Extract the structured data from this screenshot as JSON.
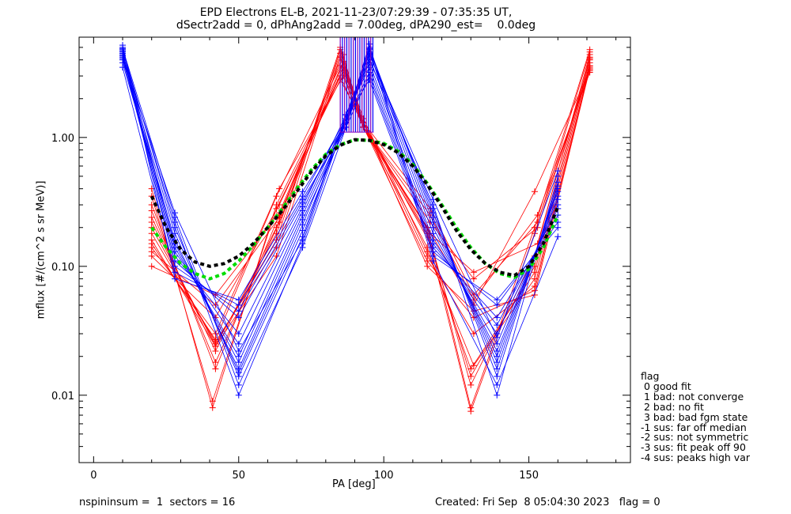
{
  "title_line1": "EPD Electrons EL-B, 2021-11-23/07:29:39 - 07:35:35 UT,",
  "title_line2": "dSectr2add = 0, dPhAng2add = 7.00deg, dPA290_est=    0.0deg",
  "footer": {
    "left": "nspininsum =  1  sectors = 16",
    "right": "Created: Fri Sep  8 05:04:30 2023   flag = 0"
  },
  "legend": {
    "title": "flag",
    "items": [
      " 0 good fit",
      " 1 bad: not converge",
      " 2 bad: no fit",
      " 3 bad: bad fgm state",
      "-1 sus: far off median",
      "-2 sus: not symmetric",
      "-3 sus: fit peak off 90",
      "-4 sus: peaks high var"
    ]
  },
  "colors": {
    "red": "#ff0000",
    "blue": "#0000ff",
    "purple": "#8000c0",
    "green": "#00dd00",
    "black": "#000000"
  },
  "chart_data": {
    "type": "line",
    "xlabel": "PA [deg]",
    "ylabel": "mflux [#/(cm^2 s sr MeV)]",
    "xlim": [
      -5,
      185
    ],
    "ylim": [
      0.003,
      6.0
    ],
    "yscale": "log",
    "xticks": [
      0,
      50,
      100,
      150
    ],
    "yticks": [
      0.01,
      0.1,
      1.0
    ],
    "ytick_labels": [
      "0.01",
      "0.10",
      "1.00"
    ],
    "series": [
      {
        "color": "red",
        "x": [
          20,
          41,
          63,
          85,
          93,
          115,
          130,
          152,
          171
        ],
        "y": [
          0.4,
          0.008,
          0.3,
          3.0,
          1.2,
          0.2,
          0.008,
          0.2,
          4.8
        ]
      },
      {
        "color": "red",
        "x": [
          20,
          41,
          63,
          85,
          93,
          115,
          130,
          152,
          171
        ],
        "y": [
          0.35,
          0.009,
          0.28,
          2.8,
          1.3,
          0.18,
          0.0075,
          0.18,
          4.6
        ]
      },
      {
        "color": "red",
        "x": [
          20,
          42,
          64,
          86,
          93,
          116,
          130,
          152,
          171
        ],
        "y": [
          0.3,
          0.016,
          0.25,
          3.5,
          1.2,
          0.16,
          0.012,
          0.12,
          4.4
        ]
      },
      {
        "color": "red",
        "x": [
          20,
          42,
          64,
          86,
          93,
          116,
          130,
          152,
          171
        ],
        "y": [
          0.27,
          0.018,
          0.22,
          3.8,
          1.3,
          0.15,
          0.014,
          0.1,
          4.2
        ]
      },
      {
        "color": "red",
        "x": [
          20,
          42,
          63,
          85,
          93,
          115,
          130,
          152,
          171
        ],
        "y": [
          0.24,
          0.022,
          0.2,
          4.2,
          1.2,
          0.14,
          0.016,
          0.09,
          4.0
        ]
      },
      {
        "color": "red",
        "x": [
          20,
          42,
          63,
          85,
          93,
          115,
          131,
          152,
          171
        ],
        "y": [
          0.22,
          0.024,
          0.18,
          4.5,
          1.4,
          0.13,
          0.017,
          0.08,
          3.8
        ]
      },
      {
        "color": "red",
        "x": [
          20,
          42,
          63,
          85,
          93,
          115,
          131,
          152,
          171
        ],
        "y": [
          0.2,
          0.025,
          0.16,
          5.0,
          1.3,
          0.12,
          0.03,
          0.07,
          3.6
        ]
      },
      {
        "color": "red",
        "x": [
          20,
          42,
          63,
          85,
          93,
          115,
          131,
          152,
          171
        ],
        "y": [
          0.18,
          0.026,
          0.14,
          4.8,
          1.2,
          0.11,
          0.04,
          0.065,
          3.5
        ]
      },
      {
        "color": "red",
        "x": [
          20,
          42,
          63,
          85,
          93,
          115,
          131,
          152,
          171
        ],
        "y": [
          0.16,
          0.024,
          0.12,
          4.2,
          1.3,
          0.1,
          0.045,
          0.06,
          3.4
        ]
      },
      {
        "color": "red",
        "x": [
          20,
          42,
          63,
          85,
          93,
          115,
          131,
          152,
          171
        ],
        "y": [
          0.15,
          0.027,
          0.35,
          3.6,
          1.2,
          0.2,
          0.05,
          0.38,
          3.3
        ]
      },
      {
        "color": "red",
        "x": [
          20,
          42,
          64,
          86,
          93,
          116,
          131,
          153,
          171
        ],
        "y": [
          0.14,
          0.03,
          0.4,
          3.0,
          1.2,
          0.25,
          0.055,
          0.25,
          3.2
        ]
      },
      {
        "color": "red",
        "x": [
          20,
          42,
          64,
          86,
          93,
          116,
          131,
          153,
          171
        ],
        "y": [
          0.12,
          0.04,
          0.3,
          3.3,
          1.3,
          0.28,
          0.06,
          0.22,
          3.4
        ]
      },
      {
        "color": "red",
        "x": [
          20,
          42,
          64,
          86,
          93,
          116,
          131,
          153,
          171
        ],
        "y": [
          0.1,
          0.06,
          0.26,
          3.9,
          1.2,
          0.22,
          0.08,
          0.2,
          3.6
        ]
      },
      {
        "color": "red",
        "x": [
          20,
          42,
          64,
          86,
          93,
          116,
          131,
          153,
          171
        ],
        "y": [
          0.13,
          0.05,
          0.24,
          4.4,
          1.2,
          0.18,
          0.09,
          0.15,
          4.1
        ]
      },
      {
        "color": "blue",
        "x": [
          10,
          28,
          50,
          72,
          87,
          95,
          117,
          139,
          160
        ],
        "y": [
          4.5,
          0.22,
          0.01,
          0.15,
          1.4,
          4.0,
          0.3,
          0.01,
          0.5
        ]
      },
      {
        "color": "blue",
        "x": [
          10,
          28,
          50,
          72,
          87,
          95,
          117,
          139,
          160
        ],
        "y": [
          4.8,
          0.2,
          0.014,
          0.17,
          1.5,
          4.5,
          0.28,
          0.014,
          0.45
        ]
      },
      {
        "color": "blue",
        "x": [
          10,
          28,
          50,
          72,
          87,
          95,
          117,
          139,
          160
        ],
        "y": [
          4.3,
          0.18,
          0.015,
          0.19,
          1.3,
          4.8,
          0.26,
          0.016,
          0.42
        ]
      },
      {
        "color": "blue",
        "x": [
          10,
          28,
          50,
          72,
          87,
          95,
          117,
          139,
          160
        ],
        "y": [
          4.0,
          0.16,
          0.016,
          0.21,
          1.4,
          5.0,
          0.24,
          0.018,
          0.4
        ]
      },
      {
        "color": "blue",
        "x": [
          10,
          28,
          50,
          72,
          87,
          95,
          117,
          139,
          160
        ],
        "y": [
          3.8,
          0.15,
          0.018,
          0.23,
          1.2,
          4.6,
          0.22,
          0.02,
          0.38
        ]
      },
      {
        "color": "blue",
        "x": [
          10,
          28,
          50,
          72,
          87,
          95,
          117,
          139,
          160
        ],
        "y": [
          5.0,
          0.14,
          0.02,
          0.25,
          1.3,
          4.2,
          0.2,
          0.022,
          0.35
        ]
      },
      {
        "color": "blue",
        "x": [
          10,
          28,
          50,
          72,
          87,
          95,
          117,
          139,
          160
        ],
        "y": [
          4.6,
          0.13,
          0.025,
          0.27,
          1.4,
          3.8,
          0.18,
          0.025,
          0.33
        ]
      },
      {
        "color": "blue",
        "x": [
          10,
          28,
          50,
          72,
          87,
          95,
          117,
          139,
          160
        ],
        "y": [
          4.4,
          0.12,
          0.03,
          0.29,
          1.5,
          3.5,
          0.16,
          0.03,
          0.3
        ]
      },
      {
        "color": "blue",
        "x": [
          10,
          28,
          50,
          72,
          87,
          95,
          117,
          139,
          160
        ],
        "y": [
          4.2,
          0.11,
          0.04,
          0.31,
          1.3,
          3.2,
          0.15,
          0.035,
          0.28
        ]
      },
      {
        "color": "blue",
        "x": [
          10,
          28,
          50,
          72,
          87,
          95,
          117,
          139,
          160
        ],
        "y": [
          4.7,
          0.1,
          0.045,
          0.33,
          1.2,
          3.0,
          0.14,
          0.04,
          0.25
        ]
      },
      {
        "color": "blue",
        "x": [
          10,
          28,
          50,
          72,
          87,
          95,
          117,
          139,
          160
        ],
        "y": [
          3.5,
          0.09,
          0.05,
          0.35,
          1.4,
          2.8,
          0.13,
          0.05,
          0.22
        ]
      },
      {
        "color": "blue",
        "x": [
          10,
          28,
          50,
          72,
          87,
          95,
          117,
          139,
          160
        ],
        "y": [
          5.2,
          0.08,
          0.055,
          0.38,
          1.3,
          5.3,
          0.12,
          0.055,
          0.2
        ]
      },
      {
        "color": "blue",
        "x": [
          10,
          28,
          50,
          72,
          87,
          95,
          117,
          139,
          160
        ],
        "y": [
          4.9,
          0.24,
          0.012,
          0.14,
          1.2,
          4.9,
          0.11,
          0.012,
          0.17
        ]
      },
      {
        "color": "blue",
        "x": [
          10,
          28,
          50,
          72,
          87,
          95,
          117,
          139,
          160
        ],
        "y": [
          4.1,
          0.26,
          0.022,
          0.16,
          1.5,
          4.4,
          0.33,
          0.028,
          0.55
        ]
      },
      {
        "color": "green",
        "x": [
          20,
          25,
          30,
          35,
          40,
          45,
          50,
          55,
          60,
          65,
          70,
          75,
          80,
          85,
          90,
          95,
          100,
          105,
          110,
          115,
          120,
          125,
          130,
          135,
          140,
          145,
          150,
          155,
          160
        ],
        "y": [
          0.2,
          0.14,
          0.105,
          0.088,
          0.08,
          0.088,
          0.11,
          0.145,
          0.2,
          0.28,
          0.4,
          0.56,
          0.74,
          0.88,
          0.96,
          0.95,
          0.9,
          0.78,
          0.62,
          0.44,
          0.3,
          0.2,
          0.14,
          0.105,
          0.088,
          0.082,
          0.095,
          0.14,
          0.25
        ]
      },
      {
        "color": "black",
        "x": [
          20,
          25,
          30,
          35,
          40,
          45,
          50,
          55,
          60,
          65,
          70,
          75,
          80,
          85,
          90,
          95,
          100,
          105,
          110,
          115,
          120,
          125,
          130,
          135,
          140,
          145,
          150,
          155,
          160
        ],
        "y": [
          0.35,
          0.2,
          0.135,
          0.108,
          0.1,
          0.105,
          0.12,
          0.15,
          0.2,
          0.27,
          0.38,
          0.54,
          0.72,
          0.87,
          0.96,
          0.95,
          0.88,
          0.76,
          0.6,
          0.43,
          0.29,
          0.19,
          0.135,
          0.105,
          0.09,
          0.085,
          0.1,
          0.15,
          0.29
        ]
      }
    ]
  }
}
